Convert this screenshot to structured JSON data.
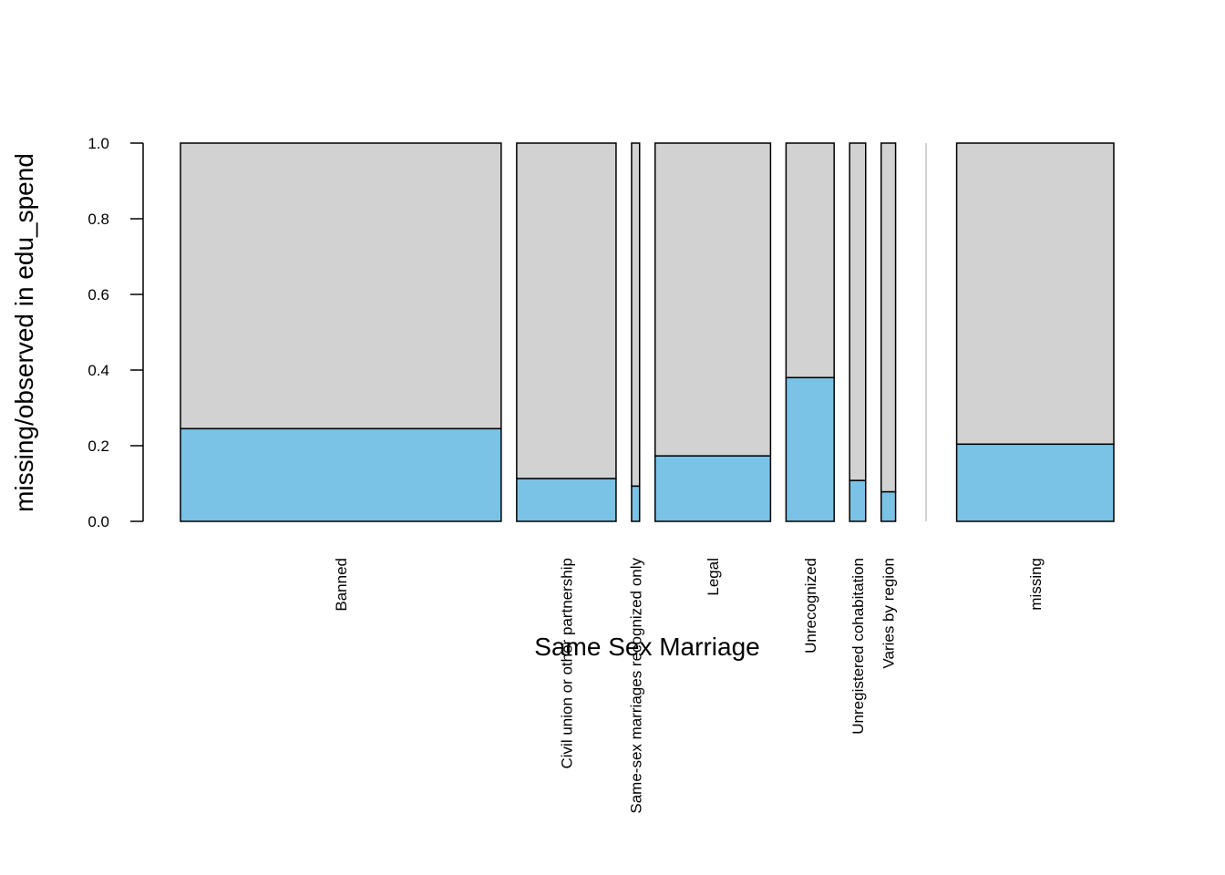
{
  "chart_data": {
    "type": "bar",
    "subtype": "spineplot",
    "xlabel": "Same Sex Marriage",
    "ylabel": "missing/observed in edu_spend",
    "ylim": [
      0,
      1
    ],
    "yticks": [
      "0.0",
      "0.2",
      "0.4",
      "0.6",
      "0.8",
      "1.0"
    ],
    "categories": [
      "Banned",
      "Civil union or other partnership",
      "Same-sex marriages recognized only",
      "Legal",
      "Unrecognized",
      "Unregistered cohabitation",
      "Varies by region",
      "missing"
    ],
    "relative_widths": [
      100,
      31,
      2.5,
      36,
      15,
      5,
      4.5,
      49
    ],
    "series": [
      {
        "name": "missing",
        "color": "#7AC3E6",
        "values": [
          0.245,
          0.113,
          0.093,
          0.173,
          0.38,
          0.108,
          0.078,
          0.204
        ]
      },
      {
        "name": "observed",
        "color": "#D2D2D2",
        "values": [
          0.755,
          0.887,
          0.907,
          0.827,
          0.62,
          0.892,
          0.922,
          0.796
        ]
      }
    ],
    "grid": false,
    "legend": "none"
  }
}
